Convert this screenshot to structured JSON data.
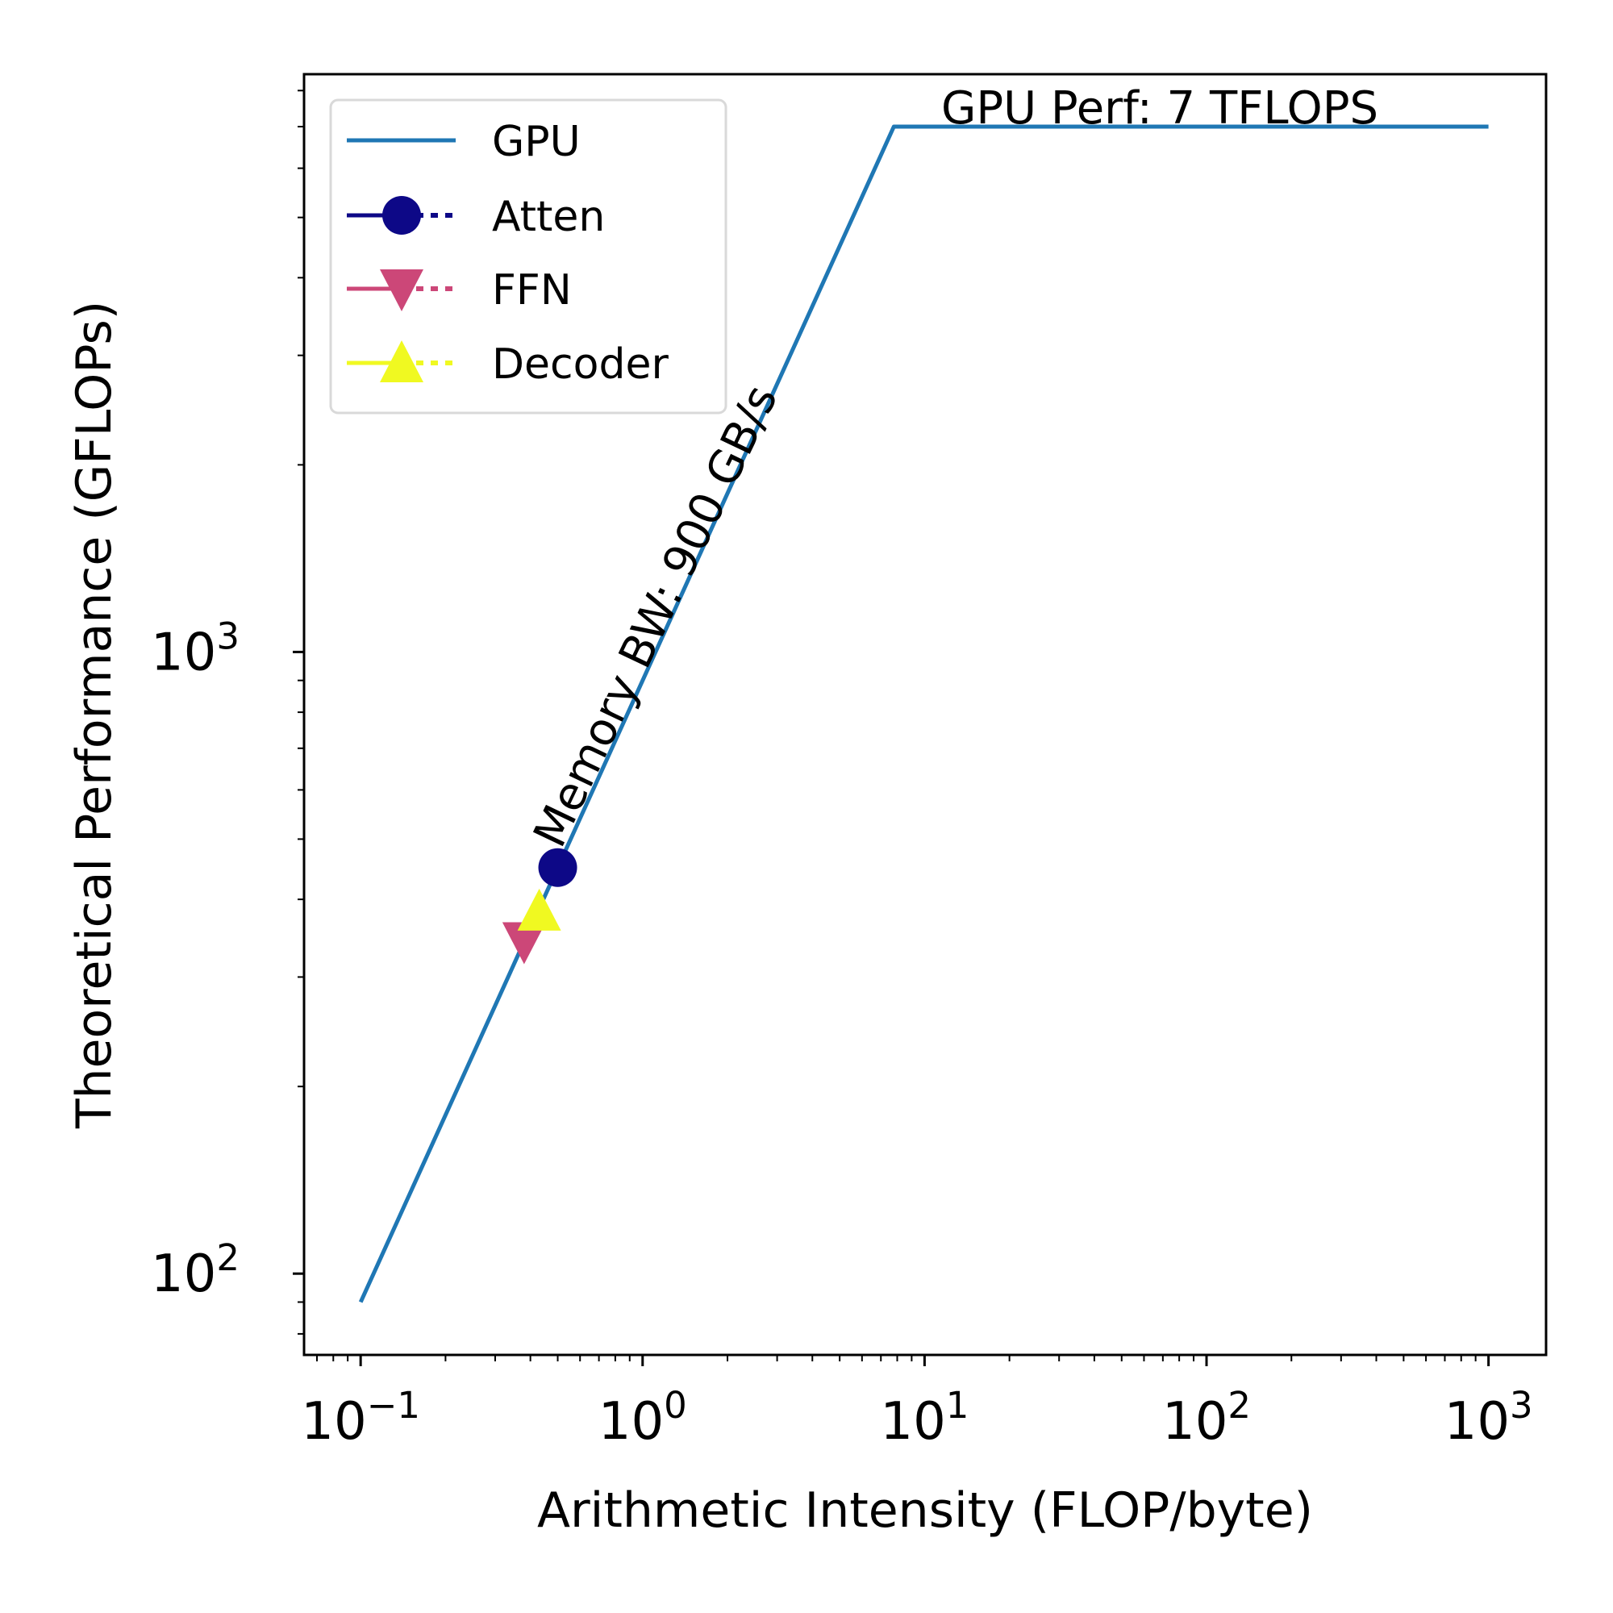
{
  "chart_data": {
    "type": "line",
    "xlabel": "Arithmetic Intensity (FLOP/byte)",
    "ylabel": "Theoretical Performance (GFLOPs)",
    "xscale": "log",
    "yscale": "log",
    "xlim": [
      0.063,
      1600
    ],
    "ylim": [
      74,
      8500
    ],
    "x_ticks": [
      {
        "base": "10",
        "exp": "−1",
        "value": 0.1
      },
      {
        "base": "10",
        "exp": "0",
        "value": 1
      },
      {
        "base": "10",
        "exp": "1",
        "value": 10
      },
      {
        "base": "10",
        "exp": "2",
        "value": 100
      },
      {
        "base": "10",
        "exp": "3",
        "value": 1000
      }
    ],
    "y_ticks": [
      {
        "base": "10",
        "exp": "2",
        "value": 100
      },
      {
        "base": "10",
        "exp": "3",
        "value": 1000
      }
    ],
    "grid": false,
    "legend_position": "top-left",
    "series": [
      {
        "name": "GPU",
        "kind": "line",
        "color": "#1f77b4",
        "x": [
          0.1,
          7.78,
          1000
        ],
        "y": [
          90,
          7000,
          7000
        ]
      },
      {
        "name": "Atten",
        "kind": "marker",
        "marker": "circle",
        "color": "#0d0887",
        "x": [
          0.5
        ],
        "y": [
          450
        ]
      },
      {
        "name": "FFN",
        "kind": "marker",
        "marker": "triangle-down",
        "color": "#cc4778",
        "x": [
          0.38
        ],
        "y": [
          340
        ]
      },
      {
        "name": "Decoder",
        "kind": "marker",
        "marker": "triangle-up",
        "color": "#f0f921",
        "x": [
          0.43
        ],
        "y": [
          385
        ]
      }
    ],
    "annotations": [
      {
        "id": "bw",
        "text": "Memory BW: 900 GB/s"
      },
      {
        "id": "peak",
        "text": "GPU Perf: 7 TFLOPS"
      }
    ]
  }
}
